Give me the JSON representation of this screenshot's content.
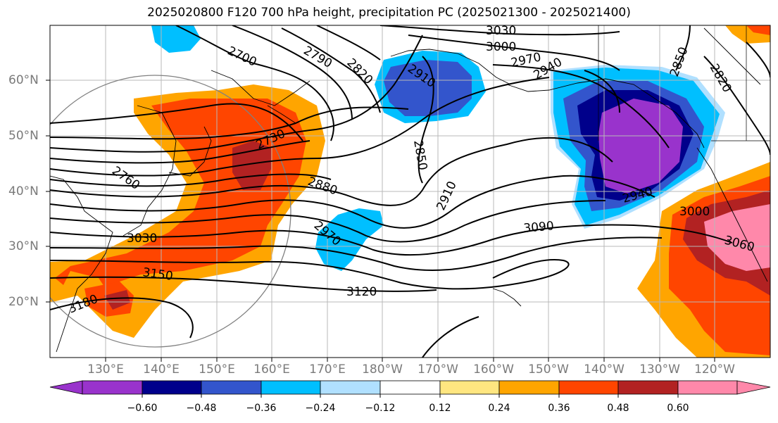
{
  "title": "2025020800 F120 700 hPa height, precipitation PC (2025021300 - 2025021400)",
  "map": {
    "lat_labels": [
      "60°N",
      "50°N",
      "40°N",
      "30°N",
      "20°N"
    ],
    "lon_labels": [
      "130°E",
      "140°E",
      "150°E",
      "160°E",
      "170°E",
      "180°W",
      "170°W",
      "160°W",
      "150°W",
      "140°W",
      "130°W",
      "120°W"
    ],
    "contour_labels": [
      "3030",
      "3000",
      "2970",
      "2940",
      "2850",
      "2820",
      "2790",
      "2820",
      "2700",
      "2910",
      "2730",
      "2760",
      "2850",
      "2880",
      "2910",
      "2940",
      "3000",
      "2970",
      "3030",
      "3090",
      "3060",
      "3150",
      "3120",
      "3180"
    ]
  },
  "colorbar": {
    "ticks": [
      "−0.60",
      "−0.48",
      "−0.36",
      "−0.24",
      "−0.12",
      "0.12",
      "0.24",
      "0.36",
      "0.48",
      "0.60"
    ],
    "colors": [
      "#9933cc",
      "#00008b",
      "#3355cc",
      "#00bfff",
      "#b0e0ff",
      "#ffffff",
      "#ffe680",
      "#ffa500",
      "#ff4500",
      "#b22222",
      "#ff88aa"
    ]
  }
}
